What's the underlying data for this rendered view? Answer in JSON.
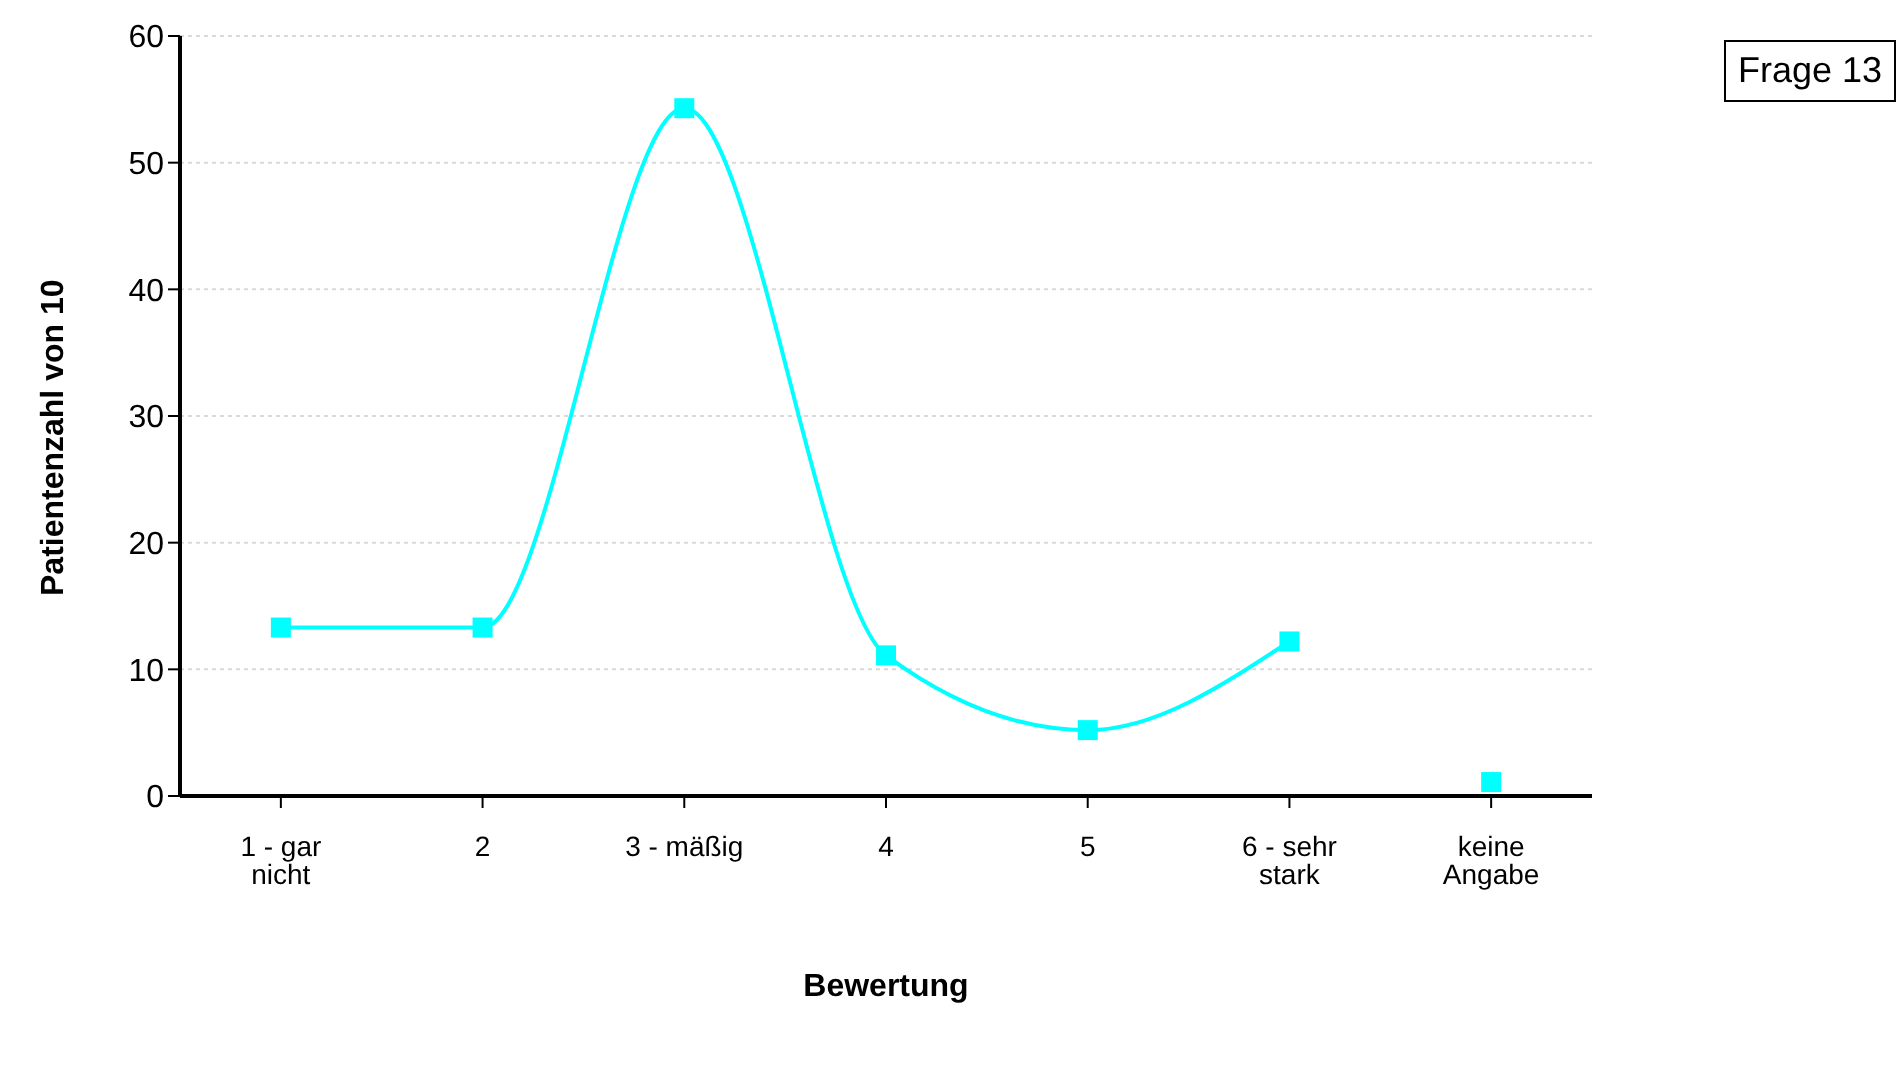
{
  "chart_data": {
    "type": "line",
    "xlabel": "Bewertung",
    "ylabel": "Patientenzahl von 10",
    "annotations": [
      "Frage 13"
    ],
    "categories": [
      "1 - gar nicht",
      "2",
      "3 - mäßig",
      "4",
      "5",
      "6 - sehr stark",
      "keine Angabe"
    ],
    "series": [
      {
        "color": "#00ffff",
        "values": [
          13.3,
          13.3,
          54.3,
          11.1,
          5.2,
          12.2,
          null
        ]
      },
      {
        "type": "scatter",
        "color": "#00ffff",
        "values": [
          null,
          null,
          null,
          null,
          null,
          null,
          1.1
        ]
      }
    ],
    "ylim": [
      0,
      60
    ],
    "yticks": [
      0,
      10,
      20,
      30,
      40,
      50,
      60
    ],
    "grid": "y",
    "legend": false,
    "marker": "square",
    "line_style": "solid"
  }
}
